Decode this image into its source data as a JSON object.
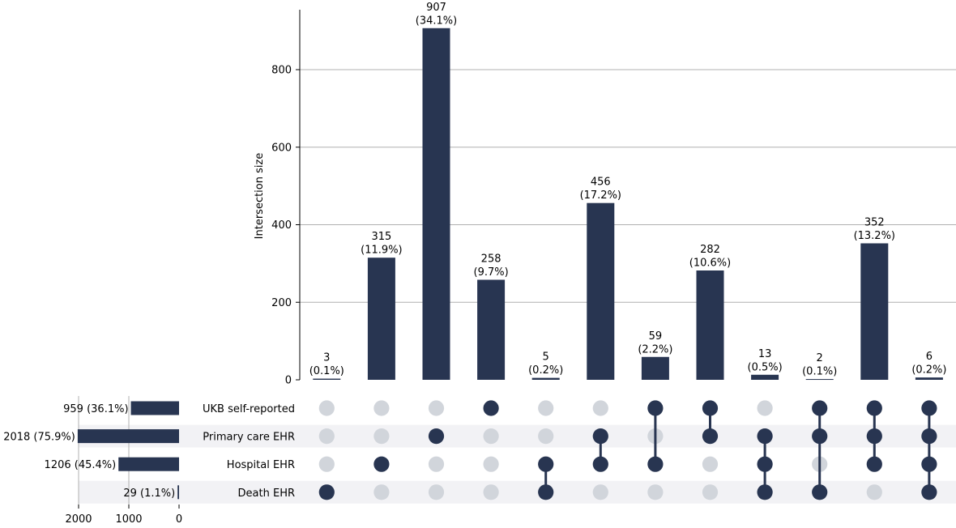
{
  "chart_data": {
    "type": "bar",
    "subtype": "upset",
    "title": "",
    "ylabel": "Intersection size",
    "ylim": [
      0,
      950
    ],
    "yticks": [
      "0",
      "200",
      "400",
      "600",
      "800"
    ],
    "bar_color": "#283551",
    "inactive_dot_color": "#d1d5db",
    "grid_color": "#b0b0b0",
    "stripe_color": "#f2f2f5",
    "sets": [
      {
        "name": "UKB self-reported",
        "size": 959,
        "size_label": "959 (36.1%)"
      },
      {
        "name": "Primary care EHR",
        "size": 2018,
        "size_label": "2018 (75.9%)"
      },
      {
        "name": "Hospital EHR",
        "size": 1206,
        "size_label": "1206 (45.4%)"
      },
      {
        "name": "Death EHR",
        "size": 29,
        "size_label": "29 (1.1%)"
      }
    ],
    "set_size_axis": {
      "ticks": [
        "2000",
        "1000",
        "0"
      ],
      "max": 2000
    },
    "intersections": [
      {
        "value": 3,
        "label": "3",
        "pct": "(0.1%)",
        "members": [
          3
        ]
      },
      {
        "value": 315,
        "label": "315",
        "pct": "(11.9%)",
        "members": [
          2
        ]
      },
      {
        "value": 907,
        "label": "907",
        "pct": "(34.1%)",
        "members": [
          1
        ]
      },
      {
        "value": 258,
        "label": "258",
        "pct": "(9.7%)",
        "members": [
          0
        ]
      },
      {
        "value": 5,
        "label": "5",
        "pct": "(0.2%)",
        "members": [
          2,
          3
        ]
      },
      {
        "value": 456,
        "label": "456",
        "pct": "(17.2%)",
        "members": [
          1,
          2
        ]
      },
      {
        "value": 59,
        "label": "59",
        "pct": "(2.2%)",
        "members": [
          0,
          2
        ]
      },
      {
        "value": 282,
        "label": "282",
        "pct": "(10.6%)",
        "members": [
          0,
          1
        ]
      },
      {
        "value": 13,
        "label": "13",
        "pct": "(0.5%)",
        "members": [
          1,
          2,
          3
        ]
      },
      {
        "value": 2,
        "label": "2",
        "pct": "(0.1%)",
        "members": [
          0,
          1,
          3
        ]
      },
      {
        "value": 352,
        "label": "352",
        "pct": "(13.2%)",
        "members": [
          0,
          1,
          2
        ]
      },
      {
        "value": 6,
        "label": "6",
        "pct": "(0.2%)",
        "members": [
          0,
          1,
          2,
          3
        ]
      }
    ]
  }
}
